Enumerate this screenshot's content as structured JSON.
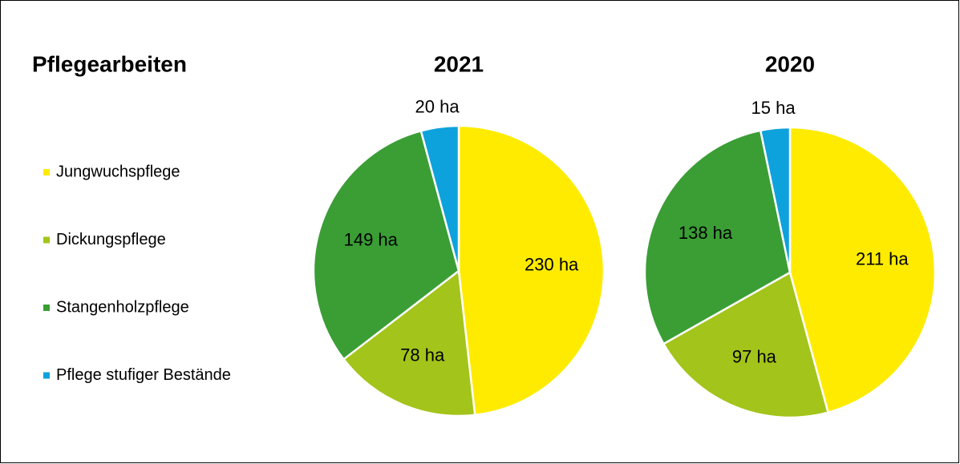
{
  "title": "Pflegearbeiten",
  "chart_data": [
    {
      "type": "pie",
      "title": "2021",
      "categories": [
        "Jungwuchspflege",
        "Dickungspflege",
        "Stangenholzpflege",
        "Pflege stufiger Bestände"
      ],
      "colors": [
        "#ffeb00",
        "#a3c41a",
        "#3a9e35",
        "#0ea2dc"
      ],
      "values": [
        230,
        78,
        149,
        20
      ],
      "value_labels": [
        "230 ha",
        "78 ha",
        "149 ha",
        "20 ha"
      ]
    },
    {
      "type": "pie",
      "title": "2020",
      "categories": [
        "Jungwuchspflege",
        "Dickungspflege",
        "Stangenholzpflege",
        "Pflege stufiger Bestände"
      ],
      "colors": [
        "#ffeb00",
        "#a3c41a",
        "#3a9e35",
        "#0ea2dc"
      ],
      "values": [
        211,
        97,
        138,
        15
      ],
      "value_labels": [
        "211 ha",
        "97 ha",
        "138 ha",
        "15 ha"
      ]
    }
  ]
}
